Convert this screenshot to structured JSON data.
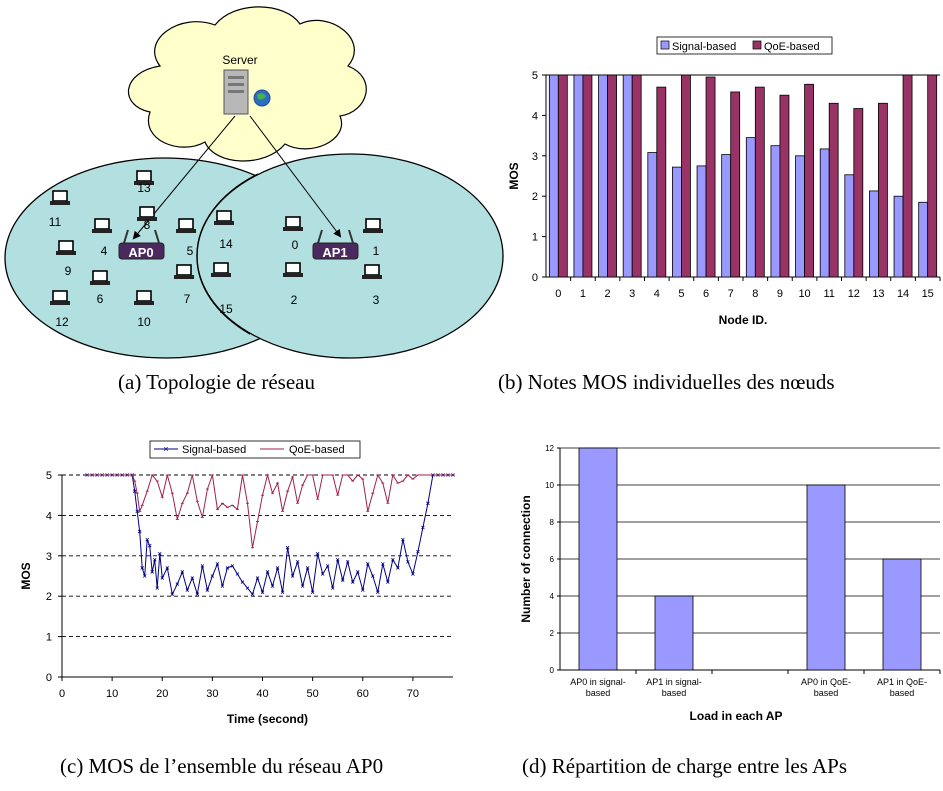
{
  "captions": {
    "a": "(a) Topologie de réseau",
    "b": "(b) Notes MOS individuelles des nœuds",
    "c": "(c) MOS de l’ensemble du réseau AP0",
    "d": "(d) Répartition de charge entre les APs"
  },
  "colors": {
    "signal_fill": "#9999ff",
    "qoe_fill": "#993366",
    "signal_line": "#000080",
    "qoe_line": "#a0204a",
    "cloud": "#ffffcc",
    "cell": "#b2dfe0"
  },
  "topology": {
    "server_label": "Server",
    "ap0_label": "AP0",
    "ap1_label": "AP1",
    "ap0_nodes": [
      "13",
      "8",
      "11",
      "4",
      "5",
      "9",
      "6",
      "7",
      "12",
      "10"
    ],
    "ap1_nodes": [
      "14",
      "0",
      "1",
      "2",
      "3",
      "15"
    ]
  },
  "chart_data": [
    {
      "id": "b",
      "type": "bar",
      "xlabel": "Node ID.",
      "ylabel": "MOS",
      "ylim": [
        0,
        5
      ],
      "yticks": [
        "0",
        "1",
        "2",
        "3",
        "4",
        "5"
      ],
      "grid": false,
      "legend_position": "top",
      "categories": [
        "0",
        "1",
        "2",
        "3",
        "4",
        "5",
        "6",
        "7",
        "8",
        "9",
        "10",
        "11",
        "12",
        "13",
        "14",
        "15"
      ],
      "series": [
        {
          "name": "Signal-based",
          "values": [
            5,
            5,
            5,
            5,
            3.08,
            2.72,
            2.75,
            3.03,
            3.45,
            3.25,
            3.0,
            3.17,
            2.53,
            2.13,
            2.0,
            1.85
          ]
        },
        {
          "name": "QoE-based",
          "values": [
            5,
            5,
            5,
            5,
            4.7,
            5.0,
            4.95,
            4.58,
            4.7,
            4.5,
            4.77,
            4.3,
            4.17,
            4.3,
            5.0,
            5.0
          ]
        }
      ]
    },
    {
      "id": "c",
      "type": "line",
      "xlabel": "Time (second)",
      "ylabel": "MOS",
      "xlim": [
        0,
        78
      ],
      "ylim": [
        0,
        5
      ],
      "xticks": [
        "0",
        "10",
        "20",
        "30",
        "40",
        "50",
        "60",
        "70"
      ],
      "yticks": [
        "0",
        "1",
        "2",
        "3",
        "4",
        "5"
      ],
      "grid": "horizontal dashed",
      "legend_position": "top",
      "series": [
        {
          "name": "Signal-based",
          "x": [
            5,
            6,
            7,
            8,
            9,
            10,
            11,
            12,
            13,
            14,
            14.5,
            15,
            15.5,
            16,
            16.5,
            17,
            17.5,
            18,
            18.5,
            19,
            19.5,
            20,
            21,
            22,
            23,
            24,
            25,
            26,
            27,
            28,
            29,
            30,
            31,
            32,
            33,
            34,
            35,
            36,
            37,
            38,
            39,
            40,
            41,
            42,
            43,
            44,
            45,
            46,
            47,
            48,
            49,
            50,
            51,
            52,
            53,
            54,
            55,
            56,
            57,
            58,
            59,
            60,
            61,
            62,
            63,
            64,
            65,
            66,
            67,
            68,
            69,
            70,
            71,
            72,
            73,
            74,
            75,
            76,
            77,
            78
          ],
          "y": [
            5,
            5,
            5,
            5,
            5,
            5,
            5,
            5,
            5,
            5,
            4.6,
            4.1,
            3.6,
            2.7,
            2.5,
            3.4,
            3.25,
            2.6,
            2.9,
            2.2,
            3.05,
            2.45,
            2.7,
            2.05,
            2.3,
            2.6,
            2.15,
            2.45,
            2.05,
            2.75,
            2.15,
            2.5,
            2.8,
            2.25,
            2.7,
            2.75,
            2.55,
            2.35,
            2.2,
            2.05,
            2.45,
            2.1,
            2.6,
            2.25,
            2.7,
            2.1,
            3.2,
            2.5,
            2.85,
            2.25,
            2.7,
            2.1,
            3.05,
            2.55,
            2.75,
            2.2,
            2.9,
            2.4,
            2.85,
            2.35,
            2.6,
            2.15,
            2.8,
            2.5,
            2.1,
            2.8,
            2.35,
            2.9,
            2.7,
            3.4,
            2.85,
            2.55,
            3.1,
            3.7,
            4.3,
            5,
            5,
            5,
            5,
            5
          ]
        },
        {
          "name": "QoE-based",
          "x": [
            5,
            6,
            7,
            8,
            9,
            10,
            11,
            12,
            13,
            14,
            14.5,
            15,
            15.5,
            16,
            17,
            18,
            19,
            20,
            21,
            22,
            23,
            24,
            25,
            26,
            27,
            28,
            29,
            30,
            31,
            32,
            33,
            34,
            35,
            36,
            37,
            38,
            39,
            40,
            41,
            42,
            43,
            44,
            45,
            46,
            47,
            48,
            49,
            50,
            51,
            52,
            53,
            54,
            55,
            56,
            57,
            58,
            59,
            60,
            61,
            62,
            63,
            64,
            65,
            66,
            67,
            68,
            69,
            70,
            71,
            72,
            73,
            74,
            75,
            76,
            77,
            78
          ],
          "y": [
            5,
            5,
            5,
            5,
            5,
            5,
            5,
            5,
            5,
            5,
            4.85,
            4.55,
            4.1,
            4.25,
            4.6,
            5,
            4.85,
            4.45,
            5,
            4.55,
            3.9,
            4.3,
            4.55,
            5,
            4.35,
            3.95,
            4.65,
            5,
            4.15,
            4.3,
            4.2,
            4.25,
            4.15,
            5,
            4.3,
            3.2,
            3.85,
            4.5,
            5,
            4.55,
            4.8,
            4.1,
            4.6,
            4.95,
            4.3,
            4.75,
            5,
            5,
            4.4,
            5,
            5,
            5,
            4.5,
            5,
            5,
            4.85,
            5,
            4.9,
            4.1,
            4.55,
            5,
            4.8,
            4.3,
            5,
            4.8,
            4.85,
            5,
            4.9,
            5,
            5,
            5,
            5,
            5,
            5,
            5,
            5
          ]
        }
      ]
    },
    {
      "id": "d",
      "type": "bar",
      "xlabel": "Load in each AP",
      "ylabel": "Number of  connection",
      "ylim": [
        0,
        12
      ],
      "yticks": [
        "0",
        "2",
        "4",
        "6",
        "8",
        "10",
        "12"
      ],
      "grid": "horizontal",
      "categories": [
        "AP0 in signal-based",
        "AP1 in signal-based",
        "",
        "AP0 in QoE-based",
        "AP1 in QoE-based"
      ],
      "category_lines": [
        [
          "AP0 in signal-",
          "based"
        ],
        [
          "AP1 in signal-",
          "based"
        ],
        [
          "",
          ""
        ],
        [
          "AP0 in QoE-",
          "based"
        ],
        [
          "AP1 in QoE-",
          "based"
        ]
      ],
      "values": [
        12,
        4,
        0,
        10,
        6
      ]
    }
  ]
}
